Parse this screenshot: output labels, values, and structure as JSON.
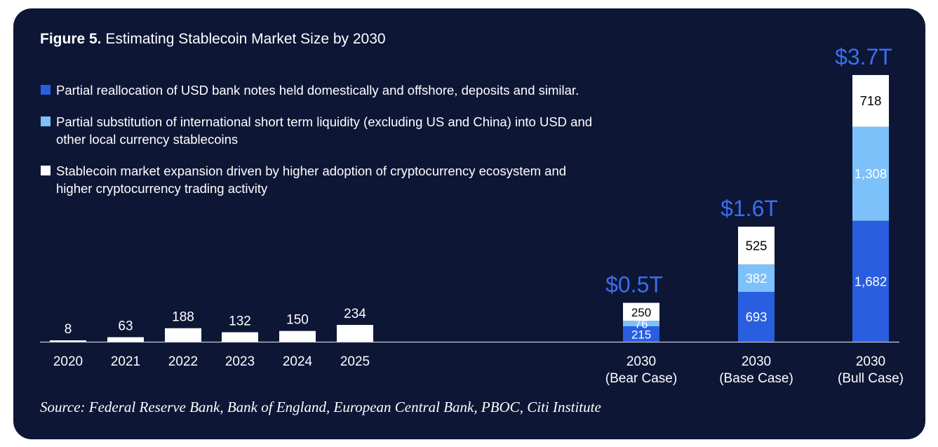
{
  "title": {
    "prefix": "Figure 5.",
    "text": "Estimating Stablecoin Market Size by 2030"
  },
  "colors": {
    "background": "#0d1635",
    "dark_blue": "#2a5ee0",
    "light_blue": "#7dc1fb",
    "white": "#ffffff",
    "total_label": "#3a6ef0"
  },
  "legend": [
    {
      "text": "Partial reallocation of USD bank notes held domestically and offshore, deposits and similar.",
      "color": "#2a5ee0"
    },
    {
      "text": "Partial substitution of international short term liquidity (excluding US and China) into USD and other local currency stablecoins",
      "color": "#7dc1fb"
    },
    {
      "text": "Stablecoin market expansion driven by higher adoption of cryptocurrency ecosystem and higher cryptocurrency trading activity",
      "color": "#ffffff"
    }
  ],
  "source": "Source: Federal Reserve Bank, Bank of England, European Central Bank, PBOC, Citi Institute",
  "chart_data": {
    "type": "bar",
    "historical": {
      "categories": [
        "2020",
        "2021",
        "2022",
        "2023",
        "2024",
        "2025"
      ],
      "values": [
        8,
        63,
        188,
        132,
        150,
        234
      ]
    },
    "scenarios": {
      "categories": [
        {
          "line1": "2030",
          "line2": "(Bear Case)"
        },
        {
          "line1": "2030",
          "line2": "(Base Case)"
        },
        {
          "line1": "2030",
          "line2": "(Bull Case)"
        }
      ],
      "series": [
        {
          "legend_index": 0,
          "color": "#2a5ee0",
          "label_color": "#ffffff",
          "values": [
            215,
            693,
            1682
          ],
          "labels": [
            "215",
            "693",
            "1,682"
          ]
        },
        {
          "legend_index": 1,
          "color": "#7dc1fb",
          "label_color": "#ffffff",
          "values": [
            76,
            382,
            1308
          ],
          "labels": [
            "76",
            "382",
            "1,308"
          ]
        },
        {
          "legend_index": 2,
          "color": "#ffffff",
          "label_color": "#000000",
          "values": [
            250,
            525,
            718
          ],
          "labels": [
            "250",
            "525",
            "718"
          ]
        }
      ],
      "totals": [
        "$0.5T",
        "$1.6T",
        "$3.7T"
      ]
    },
    "stacked": true,
    "grid": false,
    "legend_position": "top-left"
  }
}
